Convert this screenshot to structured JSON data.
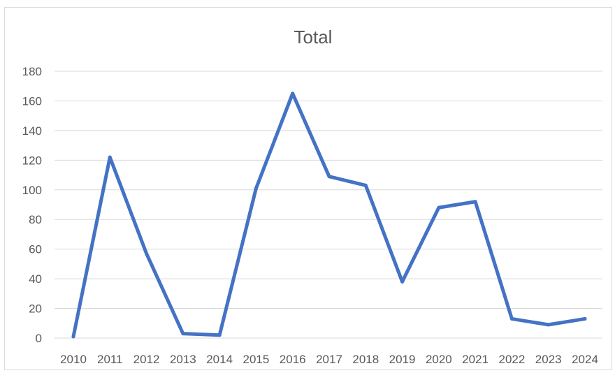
{
  "chart_data": {
    "type": "line",
    "title": "Total",
    "xlabel": "",
    "ylabel": "",
    "categories": [
      "2010",
      "2011",
      "2012",
      "2013",
      "2014",
      "2015",
      "2016",
      "2017",
      "2018",
      "2019",
      "2020",
      "2021",
      "2022",
      "2023",
      "2024"
    ],
    "series": [
      {
        "name": "",
        "values": [
          1,
          122,
          57,
          3,
          2,
          101,
          165,
          109,
          103,
          38,
          88,
          92,
          13,
          9,
          13
        ]
      }
    ],
    "ylim": [
      0,
      180
    ],
    "yticks": [
      "0",
      "20",
      "40",
      "60",
      "80",
      "100",
      "120",
      "140",
      "160",
      "180"
    ],
    "grid": true,
    "legend": "none",
    "colors": {
      "line": "#4472C4",
      "grid": "#d9d9d9",
      "text": "#595959"
    }
  }
}
